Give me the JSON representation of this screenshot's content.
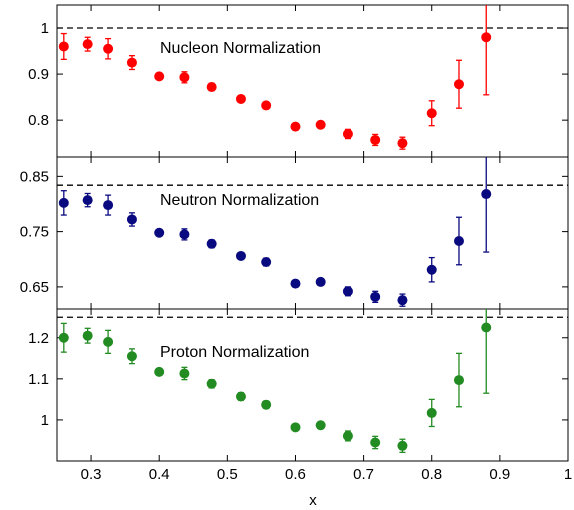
{
  "chart_data": [
    {
      "type": "scatter",
      "panel": "nucleon",
      "annotation": "Nucleon Normalization",
      "color": "#ff0000",
      "ylim": [
        0.72,
        1.05
      ],
      "yticks": [
        0.8,
        0.9,
        1
      ],
      "ytick_labels": [
        "0.8",
        "0.9",
        "1"
      ],
      "reference_line": 1.0,
      "points": [
        {
          "x": 0.26,
          "y": 0.96,
          "err": 0.028
        },
        {
          "x": 0.295,
          "y": 0.965,
          "err": 0.015
        },
        {
          "x": 0.325,
          "y": 0.955,
          "err": 0.022
        },
        {
          "x": 0.36,
          "y": 0.925,
          "err": 0.015
        },
        {
          "x": 0.4,
          "y": 0.895,
          "err": 0.006
        },
        {
          "x": 0.437,
          "y": 0.893,
          "err": 0.012
        },
        {
          "x": 0.477,
          "y": 0.872,
          "err": 0.008
        },
        {
          "x": 0.52,
          "y": 0.846,
          "err": 0.007
        },
        {
          "x": 0.557,
          "y": 0.832,
          "err": 0.007
        },
        {
          "x": 0.6,
          "y": 0.786,
          "err": 0.005
        },
        {
          "x": 0.637,
          "y": 0.79,
          "err": 0.007
        },
        {
          "x": 0.677,
          "y": 0.77,
          "err": 0.01
        },
        {
          "x": 0.717,
          "y": 0.757,
          "err": 0.012
        },
        {
          "x": 0.757,
          "y": 0.75,
          "err": 0.013
        },
        {
          "x": 0.8,
          "y": 0.815,
          "err": 0.027
        },
        {
          "x": 0.84,
          "y": 0.878,
          "err": 0.052
        },
        {
          "x": 0.88,
          "y": 0.98,
          "err": 0.125
        }
      ]
    },
    {
      "type": "scatter",
      "panel": "neutron",
      "annotation": "Neutron Normalization",
      "color": "#0a0a80",
      "ylim": [
        0.61,
        0.885
      ],
      "yticks": [
        0.65,
        0.75,
        0.85
      ],
      "ytick_labels": [
        "0.65",
        "0.75",
        "0.85"
      ],
      "reference_line": 0.834,
      "points": [
        {
          "x": 0.26,
          "y": 0.802,
          "err": 0.022
        },
        {
          "x": 0.295,
          "y": 0.807,
          "err": 0.012
        },
        {
          "x": 0.325,
          "y": 0.798,
          "err": 0.018
        },
        {
          "x": 0.36,
          "y": 0.772,
          "err": 0.012
        },
        {
          "x": 0.4,
          "y": 0.748,
          "err": 0.005
        },
        {
          "x": 0.437,
          "y": 0.745,
          "err": 0.01
        },
        {
          "x": 0.477,
          "y": 0.728,
          "err": 0.007
        },
        {
          "x": 0.52,
          "y": 0.706,
          "err": 0.006
        },
        {
          "x": 0.557,
          "y": 0.695,
          "err": 0.007
        },
        {
          "x": 0.6,
          "y": 0.656,
          "err": 0.005
        },
        {
          "x": 0.637,
          "y": 0.659,
          "err": 0.006
        },
        {
          "x": 0.677,
          "y": 0.642,
          "err": 0.008
        },
        {
          "x": 0.717,
          "y": 0.632,
          "err": 0.01
        },
        {
          "x": 0.757,
          "y": 0.626,
          "err": 0.011
        },
        {
          "x": 0.8,
          "y": 0.681,
          "err": 0.022
        },
        {
          "x": 0.84,
          "y": 0.733,
          "err": 0.043
        },
        {
          "x": 0.88,
          "y": 0.818,
          "err": 0.105
        }
      ]
    },
    {
      "type": "scatter",
      "panel": "proton",
      "annotation": "Proton Normalization",
      "color": "#228b22",
      "ylim": [
        0.9,
        1.27
      ],
      "yticks": [
        1,
        1.1,
        1.2
      ],
      "ytick_labels": [
        "1",
        "1.1",
        "1.2"
      ],
      "reference_line": 1.25,
      "points": [
        {
          "x": 0.26,
          "y": 1.2,
          "err": 0.035
        },
        {
          "x": 0.295,
          "y": 1.205,
          "err": 0.018
        },
        {
          "x": 0.325,
          "y": 1.19,
          "err": 0.028
        },
        {
          "x": 0.36,
          "y": 1.155,
          "err": 0.018
        },
        {
          "x": 0.4,
          "y": 1.117,
          "err": 0.008
        },
        {
          "x": 0.437,
          "y": 1.113,
          "err": 0.015
        },
        {
          "x": 0.477,
          "y": 1.088,
          "err": 0.01
        },
        {
          "x": 0.52,
          "y": 1.057,
          "err": 0.009
        },
        {
          "x": 0.557,
          "y": 1.037,
          "err": 0.009
        },
        {
          "x": 0.6,
          "y": 0.982,
          "err": 0.006
        },
        {
          "x": 0.637,
          "y": 0.987,
          "err": 0.008
        },
        {
          "x": 0.677,
          "y": 0.961,
          "err": 0.012
        },
        {
          "x": 0.717,
          "y": 0.945,
          "err": 0.015
        },
        {
          "x": 0.757,
          "y": 0.937,
          "err": 0.016
        },
        {
          "x": 0.8,
          "y": 1.017,
          "err": 0.033
        },
        {
          "x": 0.84,
          "y": 1.097,
          "err": 0.065
        },
        {
          "x": 0.88,
          "y": 1.225,
          "err": 0.16
        }
      ]
    }
  ],
  "x_axis": {
    "label": "x",
    "xlim": [
      0.25,
      1.0
    ],
    "ticks": [
      0.3,
      0.4,
      0.5,
      0.6,
      0.7,
      0.8,
      0.9,
      1
    ],
    "tick_labels": [
      "0.3",
      "0.4",
      "0.5",
      "0.6",
      "0.7",
      "0.8",
      "0.9",
      "1"
    ]
  }
}
